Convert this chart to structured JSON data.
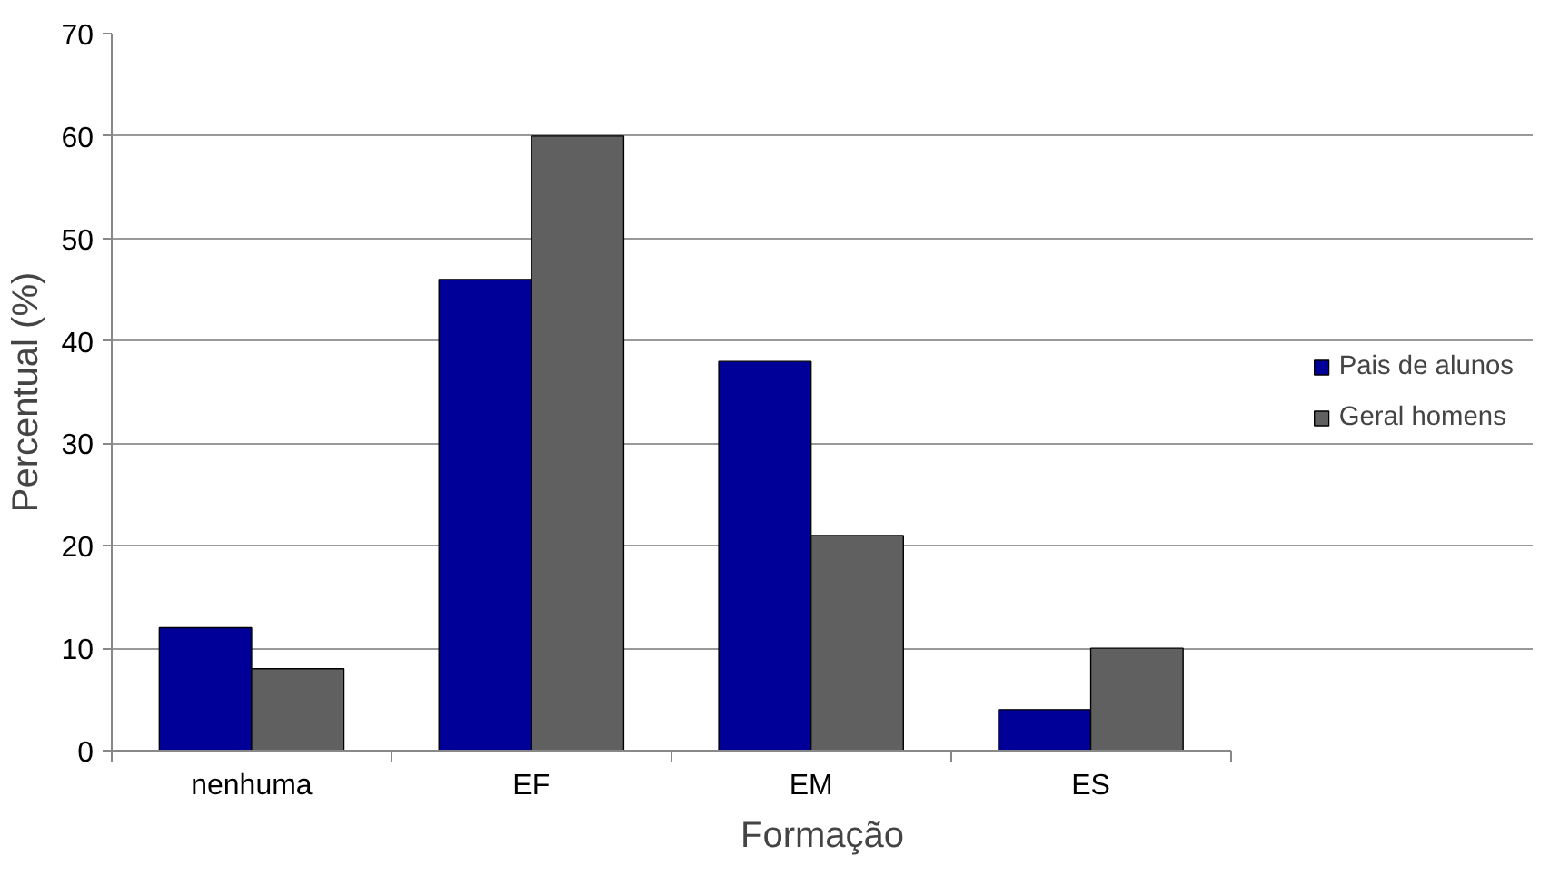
{
  "chart_data": {
    "type": "bar",
    "xlabel": "Formação",
    "ylabel": "Percentual (%)",
    "categories": [
      "nenhuma",
      "EF",
      "EM",
      "ES"
    ],
    "series": [
      {
        "name": "Pais de alunos",
        "color": "#000099",
        "values": [
          12,
          46,
          38,
          4
        ]
      },
      {
        "name": "Geral homens",
        "color": "#606060",
        "values": [
          8,
          60,
          21,
          10
        ]
      }
    ],
    "ylim": [
      0,
      70
    ],
    "yticks": [
      0,
      10,
      20,
      30,
      40,
      50,
      60,
      70
    ],
    "grid": "y",
    "legend": "right"
  }
}
